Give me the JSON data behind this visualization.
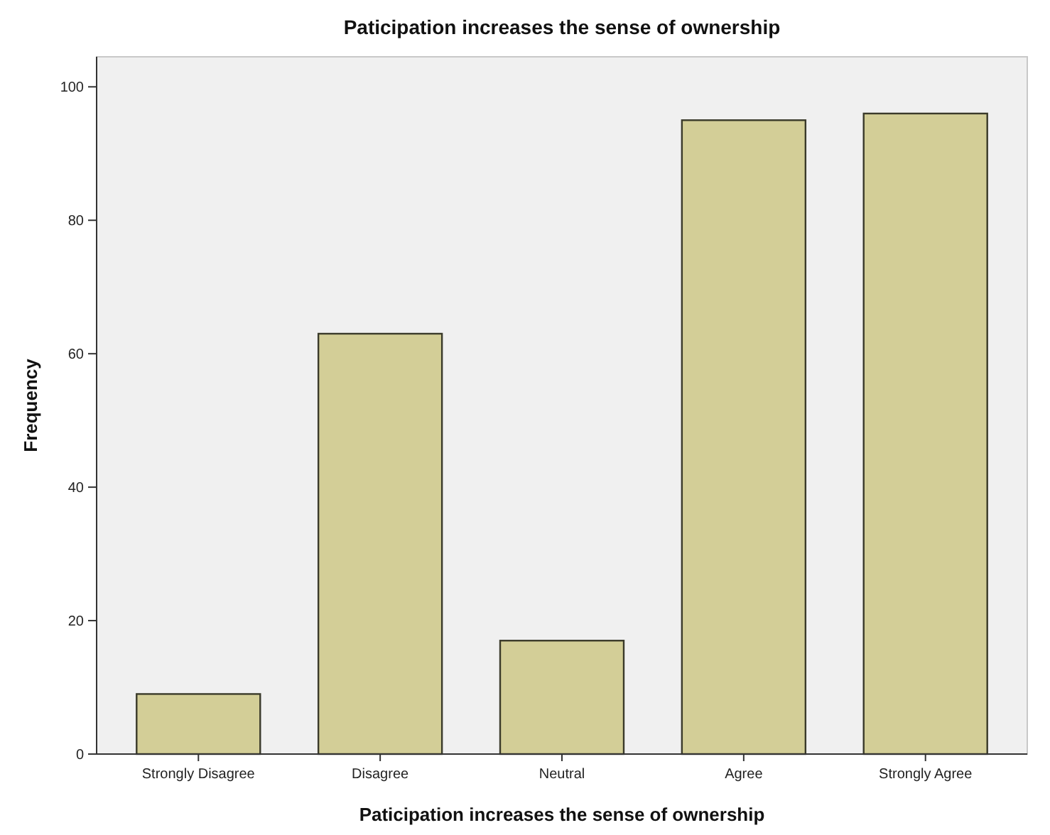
{
  "chart_data": {
    "type": "bar",
    "title": "Paticipation increases the sense of ownership",
    "xlabel": "Paticipation increases the sense of ownership",
    "ylabel": "Frequency",
    "categories": [
      "Strongly Disagree",
      "Disagree",
      "Neutral",
      "Agree",
      "Strongly Agree"
    ],
    "values": [
      9,
      63,
      17,
      95,
      96
    ],
    "color": "#d3ce97",
    "ylim": [
      0,
      104.5
    ],
    "yticks": [
      0,
      20,
      40,
      60,
      80,
      100
    ],
    "grid": false
  }
}
